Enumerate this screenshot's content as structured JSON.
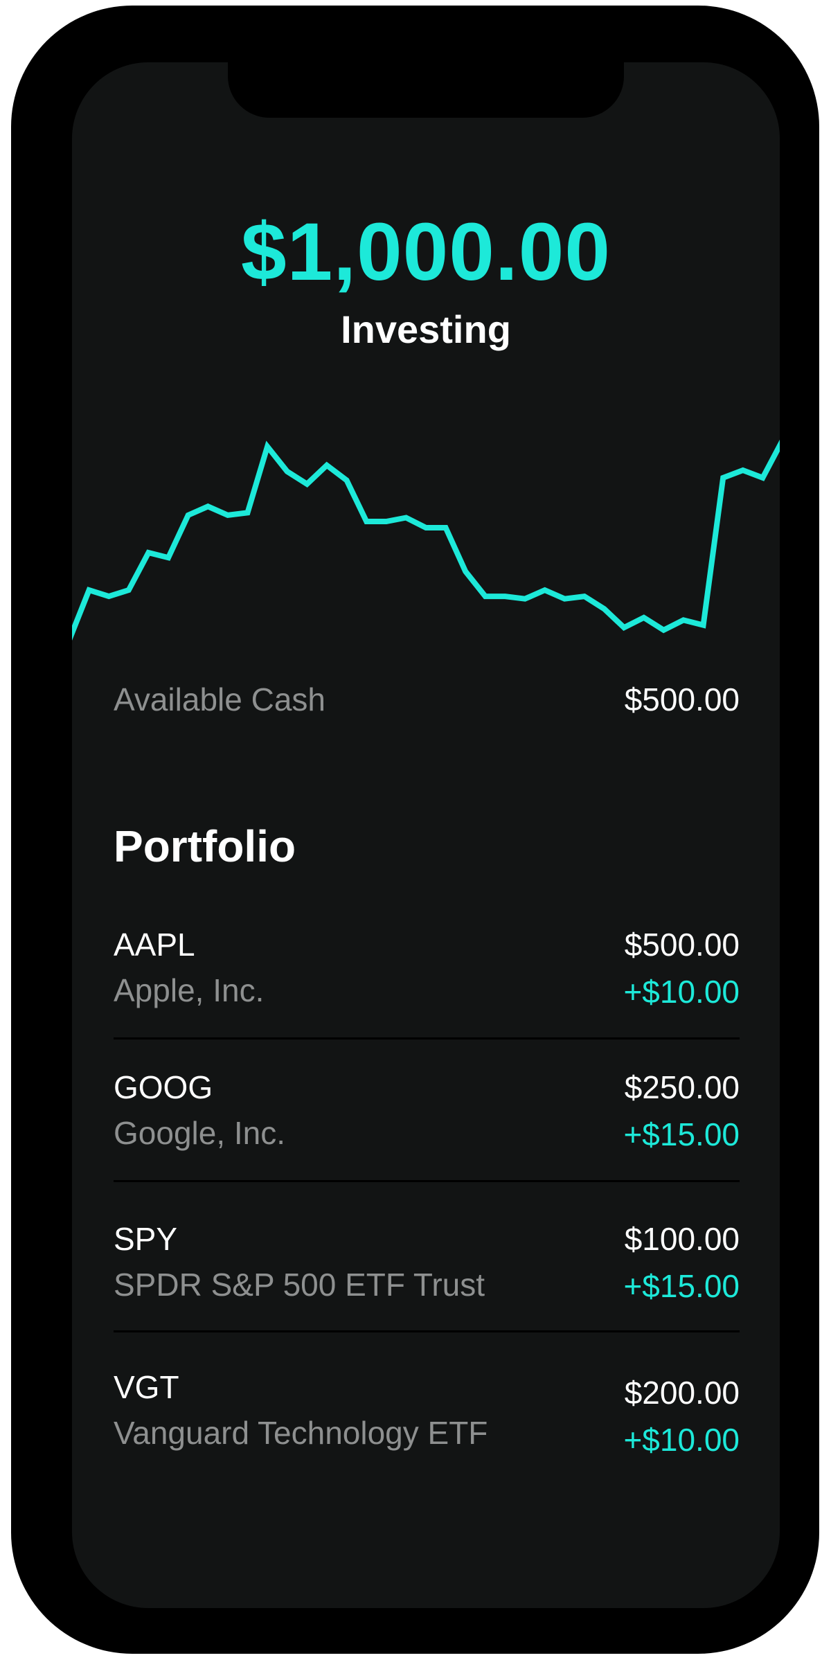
{
  "header": {
    "balance": "$1,000.00",
    "label": "Investing"
  },
  "chart_data": {
    "type": "line",
    "title": "",
    "xlabel": "",
    "ylabel": "",
    "grid": false,
    "series": [
      {
        "values": [
          920,
          960,
          955,
          960,
          990,
          986,
          1020,
          1027,
          1020,
          1022,
          1075,
          1055,
          1045,
          1060,
          1048,
          1015,
          1015,
          1018,
          1010,
          1010,
          975,
          955,
          955,
          953,
          960,
          953,
          955,
          945,
          930,
          938,
          928,
          936,
          932,
          1050,
          1056,
          1050,
          1080
        ]
      }
    ],
    "color": "#1de9d9"
  },
  "cash": {
    "label": "Available Cash",
    "value": "$500.00"
  },
  "portfolio": {
    "title": "Portfolio",
    "holdings": [
      {
        "ticker": "AAPL",
        "name": "Apple, Inc.",
        "value": "$500.00",
        "change": "+$10.00"
      },
      {
        "ticker": "GOOG",
        "name": "Google, Inc.",
        "value": "$250.00",
        "change": "+$15.00"
      },
      {
        "ticker": "SPY",
        "name": "SPDR S&P 500 ETF Trust",
        "value": "$100.00",
        "change": "+$15.00"
      },
      {
        "ticker": "VGT",
        "name": "Vanguard Technology ETF",
        "value": "$200.00",
        "change": "+$10.00"
      }
    ]
  },
  "colors": {
    "accent": "#1de9d9",
    "background": "#121414",
    "muted_text": "#8e9090"
  }
}
